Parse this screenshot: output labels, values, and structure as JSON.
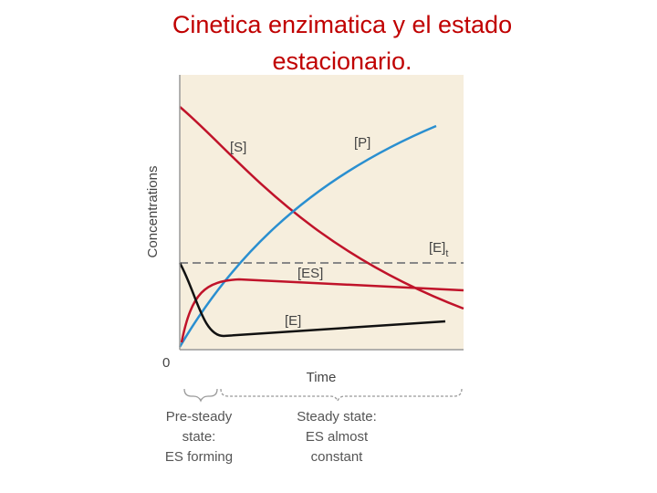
{
  "header": {
    "title_lines": [
      "Cinetica enzimatica y el estado",
      "estacionario."
    ]
  },
  "figure": {
    "y_axis_label": "Concentrations",
    "x_axis_label": "Time",
    "origin_label": "0",
    "curve_labels": {
      "S": "[S]",
      "P": "[P]",
      "Et": "[E]",
      "Et_sub": "t",
      "ES": "[ES]",
      "E": "[E]"
    },
    "phases": [
      {
        "lines": [
          "Pre-steady",
          "state:",
          "ES forming"
        ]
      },
      {
        "lines": [
          "Steady state:",
          "ES almost",
          "constant"
        ]
      }
    ]
  }
}
